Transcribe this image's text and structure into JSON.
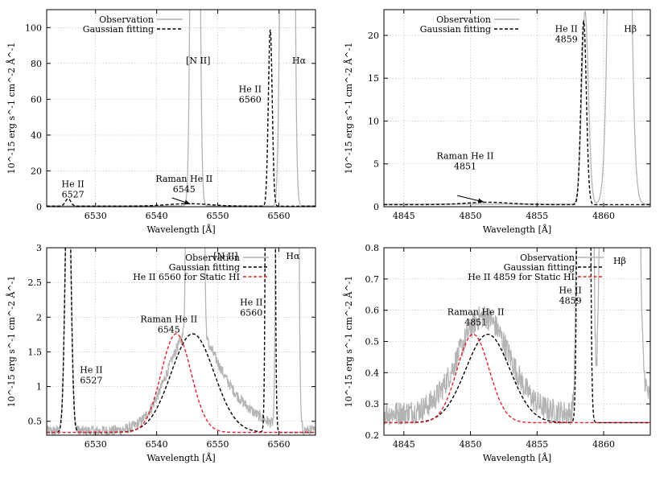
{
  "chart_data": [
    {
      "type": "line",
      "panel": "top-left",
      "xlabel": "Wavelength [Å]",
      "ylabel": "10^-15 erg s^-1 cm^-2 Å^-1",
      "xlim": [
        6522,
        6566
      ],
      "ylim": [
        0,
        110
      ],
      "xticks": [
        6530,
        6540,
        6550,
        6560
      ],
      "yticks": [
        0,
        20,
        40,
        60,
        80,
        100
      ],
      "grid": true,
      "legend_position": "top-left",
      "series": [
        {
          "name": "Observation",
          "color": "#b4b4b4",
          "style": "solid",
          "components": [
            {
              "center": 6546.3,
              "amp": 800,
              "sigma": 0.45
            },
            {
              "center": 6561.5,
              "amp": 2400,
              "sigma": 0.5
            },
            {
              "center": 6560.2,
              "amp": 60,
              "sigma": 0.3
            }
          ],
          "baseline": 0.5
        },
        {
          "name": "Gaussian fitting",
          "color": "#000000",
          "style": "dashed",
          "components": [
            {
              "center": 6525.5,
              "amp": 4.2,
              "sigma": 0.45
            },
            {
              "center": 6545.2,
              "amp": 1.4,
              "sigma": 3.5
            },
            {
              "center": 6558.6,
              "amp": 98.5,
              "sigma": 0.32
            }
          ],
          "baseline": 0.3
        }
      ],
      "annotations": [
        {
          "lines": [
            "He II",
            "6527"
          ],
          "x": 6526.3,
          "y": 11
        },
        {
          "lines": [
            "Raman He II",
            "6545"
          ],
          "x": 6544.5,
          "y": 14
        },
        {
          "lines": [
            "[N II]"
          ],
          "x": 6546.8,
          "y": 80
        },
        {
          "lines": [
            "He II",
            "6560"
          ],
          "x": 6555.3,
          "y": 64
        },
        {
          "lines": [
            "Hα"
          ],
          "x": 6563.3,
          "y": 80
        }
      ],
      "arrow": {
        "from": [
          6542.5,
          5
        ],
        "to": [
          6545.5,
          1.5
        ]
      }
    },
    {
      "type": "line",
      "panel": "top-right",
      "xlabel": "Wavelength [Å]",
      "ylabel": "10^-15 erg s^-1 cm^-2 Å^-1",
      "xlim": [
        4843.5,
        4863.5
      ],
      "ylim": [
        0,
        23
      ],
      "xticks": [
        4845,
        4850,
        4855,
        4860
      ],
      "yticks": [
        0,
        5,
        10,
        15,
        20
      ],
      "grid": true,
      "legend_position": "top-left",
      "series": [
        {
          "name": "Observation",
          "color": "#b4b4b4",
          "style": "solid",
          "components": [
            {
              "center": 4861.2,
              "amp": 200,
              "sigma": 0.45
            },
            {
              "center": 4858.6,
              "amp": 22.5,
              "sigma": 0.25
            }
          ],
          "baseline": 0.3
        },
        {
          "name": "Gaussian fitting",
          "color": "#000000",
          "style": "dashed",
          "components": [
            {
              "center": 4851.3,
              "amp": 0.28,
              "sigma": 1.7
            },
            {
              "center": 4858.5,
              "amp": 21.4,
              "sigma": 0.2
            }
          ],
          "baseline": 0.24
        }
      ],
      "annotations": [
        {
          "lines": [
            "Raman He II",
            "4851"
          ],
          "x": 4849.6,
          "y": 5.6
        },
        {
          "lines": [
            "He II",
            "4859"
          ],
          "x": 4857.2,
          "y": 20.4
        },
        {
          "lines": [
            "Hβ"
          ],
          "x": 4862.0,
          "y": 20.4
        }
      ],
      "arrow": {
        "from": [
          4849.0,
          1.3
        ],
        "to": [
          4851.0,
          0.55
        ]
      }
    },
    {
      "type": "line",
      "panel": "bottom-left",
      "xlabel": "Wavelength [Å]",
      "ylabel": "10^-15 erg s^-1 cm^-2 Å^-1",
      "xlim": [
        6522,
        6566
      ],
      "ylim": [
        0.3,
        3
      ],
      "xticks": [
        6530,
        6540,
        6550,
        6560
      ],
      "yticks": [
        0.5,
        1,
        1.5,
        2,
        2.5,
        3
      ],
      "grid": true,
      "legend_position": "top-right",
      "series": [
        {
          "name": "Observation",
          "color": "#b4b4b4",
          "style": "solid",
          "noise": 0.08,
          "components": [
            {
              "center": 6545.5,
              "amp": 1.35,
              "sigma": 3.8
            },
            {
              "center": 6552.0,
              "amp": 0.35,
              "sigma": 4.5
            },
            {
              "center": 6546.3,
              "amp": 800,
              "sigma": 0.45
            },
            {
              "center": 6561.5,
              "amp": 2400,
              "sigma": 0.5
            },
            {
              "center": 6560.2,
              "amp": 60,
              "sigma": 0.3
            },
            {
              "center": 6525.5,
              "amp": 4.2,
              "sigma": 0.45
            }
          ],
          "baseline": 0.36
        },
        {
          "name": "Gaussian fitting",
          "color": "#000000",
          "style": "dashed",
          "components": [
            {
              "center": 6525.5,
              "amp": 4.2,
              "sigma": 0.45
            },
            {
              "center": 6545.9,
              "amp": 1.42,
              "sigma": 3.5
            },
            {
              "center": 6558.6,
              "amp": 98.5,
              "sigma": 0.32
            }
          ],
          "baseline": 0.34
        },
        {
          "name": "He II 6560 for Static HI",
          "color": "#e8202a",
          "style": "dashed",
          "components": [
            {
              "center": 6543.2,
              "amp": 1.42,
              "sigma": 2.45
            }
          ],
          "baseline": 0.34
        }
      ],
      "annotations": [
        {
          "lines": [
            "Raman He II",
            "6545"
          ],
          "x": 6542.0,
          "y": 1.93
        },
        {
          "lines": [
            "He II",
            "6527"
          ],
          "x": 6529.3,
          "y": 1.2
        },
        {
          "lines": [
            "[N II]"
          ],
          "x": 6551.3,
          "y": 2.84
        },
        {
          "lines": [
            "He II",
            "6560"
          ],
          "x": 6555.5,
          "y": 2.17
        },
        {
          "lines": [
            "Hα"
          ],
          "x": 6562.3,
          "y": 2.84
        }
      ]
    },
    {
      "type": "line",
      "panel": "bottom-right",
      "xlabel": "Wavelength [Å]",
      "ylabel": "10^-15 erg s^-1 cm^-2 Å^-1",
      "xlim": [
        4843.5,
        4863.5
      ],
      "ylim": [
        0.2,
        0.8
      ],
      "xticks": [
        4845,
        4850,
        4855,
        4860
      ],
      "yticks": [
        0.2,
        0.3,
        0.4,
        0.5,
        0.6,
        0.7,
        0.8
      ],
      "grid": true,
      "legend_position": "top-right",
      "series": [
        {
          "name": "Observation",
          "color": "#b4b4b4",
          "style": "solid",
          "noise": 0.04,
          "components": [
            {
              "center": 4851.0,
              "amp": 0.31,
              "sigma": 1.9
            },
            {
              "center": 4861.2,
              "amp": 200,
              "sigma": 0.45
            },
            {
              "center": 4858.6,
              "amp": 22.5,
              "sigma": 0.25
            },
            {
              "center": 4862.5,
              "amp": 0.12,
              "sigma": 0.7
            }
          ],
          "baseline": 0.27
        },
        {
          "name": "Gaussian fitting",
          "color": "#000000",
          "style": "dashed",
          "components": [
            {
              "center": 4851.3,
              "amp": 0.283,
              "sigma": 1.65
            },
            {
              "center": 4858.5,
              "amp": 21.4,
              "sigma": 0.2
            }
          ],
          "baseline": 0.24
        },
        {
          "name": "He II 4859 for Static HI",
          "color": "#e8202a",
          "style": "dashed",
          "components": [
            {
              "center": 4850.2,
              "amp": 0.283,
              "sigma": 1.2
            }
          ],
          "baseline": 0.24
        }
      ],
      "annotations": [
        {
          "lines": [
            "Raman He II",
            "4851"
          ],
          "x": 4850.4,
          "y": 0.585
        },
        {
          "lines": [
            "He II",
            "4859"
          ],
          "x": 4857.5,
          "y": 0.655
        },
        {
          "lines": [
            "Hβ"
          ],
          "x": 4861.2,
          "y": 0.748
        }
      ]
    }
  ]
}
